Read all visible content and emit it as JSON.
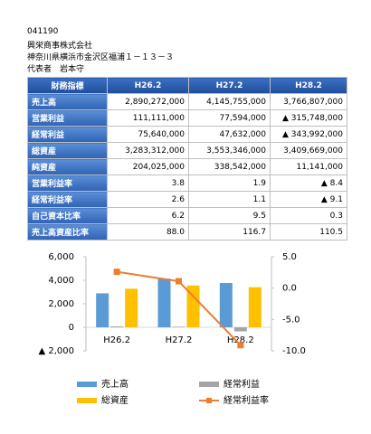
{
  "header": {
    "code": "041190",
    "company": "興栄商事株式会社",
    "address": "神奈川県横浜市金沢区福浦１－１３－３",
    "representative": "代表者　岩本守"
  },
  "table": {
    "header": [
      "財務指標",
      "H26.2",
      "H27.2",
      "H28.2"
    ],
    "rows": [
      [
        "売上高",
        "2,890,272,000",
        "4,145,755,000",
        "3,766,807,000"
      ],
      [
        "営業利益",
        "111,111,000",
        "77,594,000",
        "▲ 315,748,000"
      ],
      [
        "経常利益",
        "75,640,000",
        "47,632,000",
        "▲ 343,992,000"
      ],
      [
        "総資産",
        "3,283,312,000",
        "3,553,346,000",
        "3,409,669,000"
      ],
      [
        "純資産",
        "204,025,000",
        "338,542,000",
        "11,141,000"
      ],
      [
        "営業利益率",
        "3.8",
        "1.9",
        "▲ 8.4"
      ],
      [
        "経常利益率",
        "2.6",
        "1.1",
        "▲ 9.1"
      ],
      [
        "自己資本比率",
        "6.2",
        "9.5",
        "0.3"
      ],
      [
        "売上高資産比率",
        "88.0",
        "116.7",
        "110.5"
      ]
    ]
  },
  "chart_data": {
    "type": "bar",
    "categories": [
      "H26.2",
      "H27.2",
      "H28.2"
    ],
    "series": [
      {
        "name": "売上高",
        "color": "#5b9bd5",
        "values": [
          2890,
          4146,
          3767
        ]
      },
      {
        "name": "経常利益",
        "color": "#a5a5a5",
        "values": [
          76,
          48,
          -344
        ]
      },
      {
        "name": "総資産",
        "color": "#ffc000",
        "values": [
          3283,
          3553,
          3410
        ]
      },
      {
        "name": "経常利益率",
        "color": "#ed7d31",
        "type": "line",
        "axis": "y2",
        "values": [
          2.6,
          1.1,
          -9.1
        ]
      }
    ],
    "ylim": [
      -2000,
      6000
    ],
    "yticks": [
      {
        "value": 6000,
        "label": "6,000"
      },
      {
        "value": 4000,
        "label": "4,000"
      },
      {
        "value": 2000,
        "label": "2,000"
      },
      0,
      {
        "value": -2000,
        "label": "▲ 2,000"
      }
    ],
    "y2lim": [
      -10,
      5
    ],
    "y2ticks": [
      {
        "value": 5,
        "label": "5.0"
      },
      {
        "value": 0,
        "label": "0.0"
      },
      {
        "value": -5,
        "label": "-5.0"
      },
      {
        "value": -10,
        "label": "-10.0"
      }
    ]
  }
}
